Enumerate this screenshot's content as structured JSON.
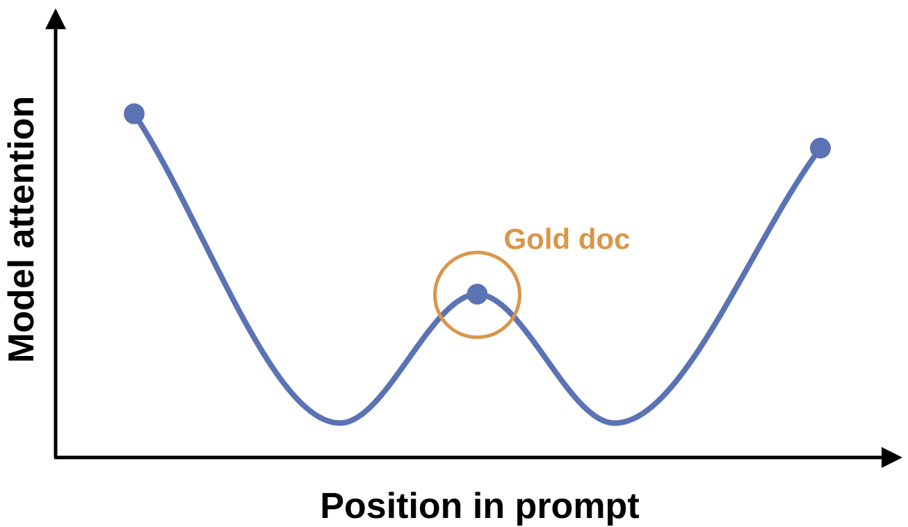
{
  "chart_data": {
    "type": "line",
    "xlabel": "Position in prompt",
    "ylabel": "Model attention",
    "xlim": [
      0,
      1
    ],
    "ylim": [
      0,
      1
    ],
    "grid": false,
    "legend": "none",
    "series": [
      {
        "x": [
          0.0,
          0.3,
          0.5,
          0.7,
          1.0
        ],
        "y": [
          0.8,
          0.08,
          0.38,
          0.08,
          0.72
        ],
        "color": "#5B73B4"
      }
    ],
    "markers": [
      {
        "x": 0.0,
        "y": 0.8
      },
      {
        "x": 0.5,
        "y": 0.38
      },
      {
        "x": 1.0,
        "y": 0.72
      }
    ],
    "annotations": [
      {
        "text": "Gold doc",
        "x": 0.5,
        "y": 0.38,
        "shape": "circle",
        "color": "#D9964A"
      }
    ]
  },
  "colors": {
    "line": "#5B73B4",
    "highlight": "#D9964A",
    "axis": "#000000"
  }
}
